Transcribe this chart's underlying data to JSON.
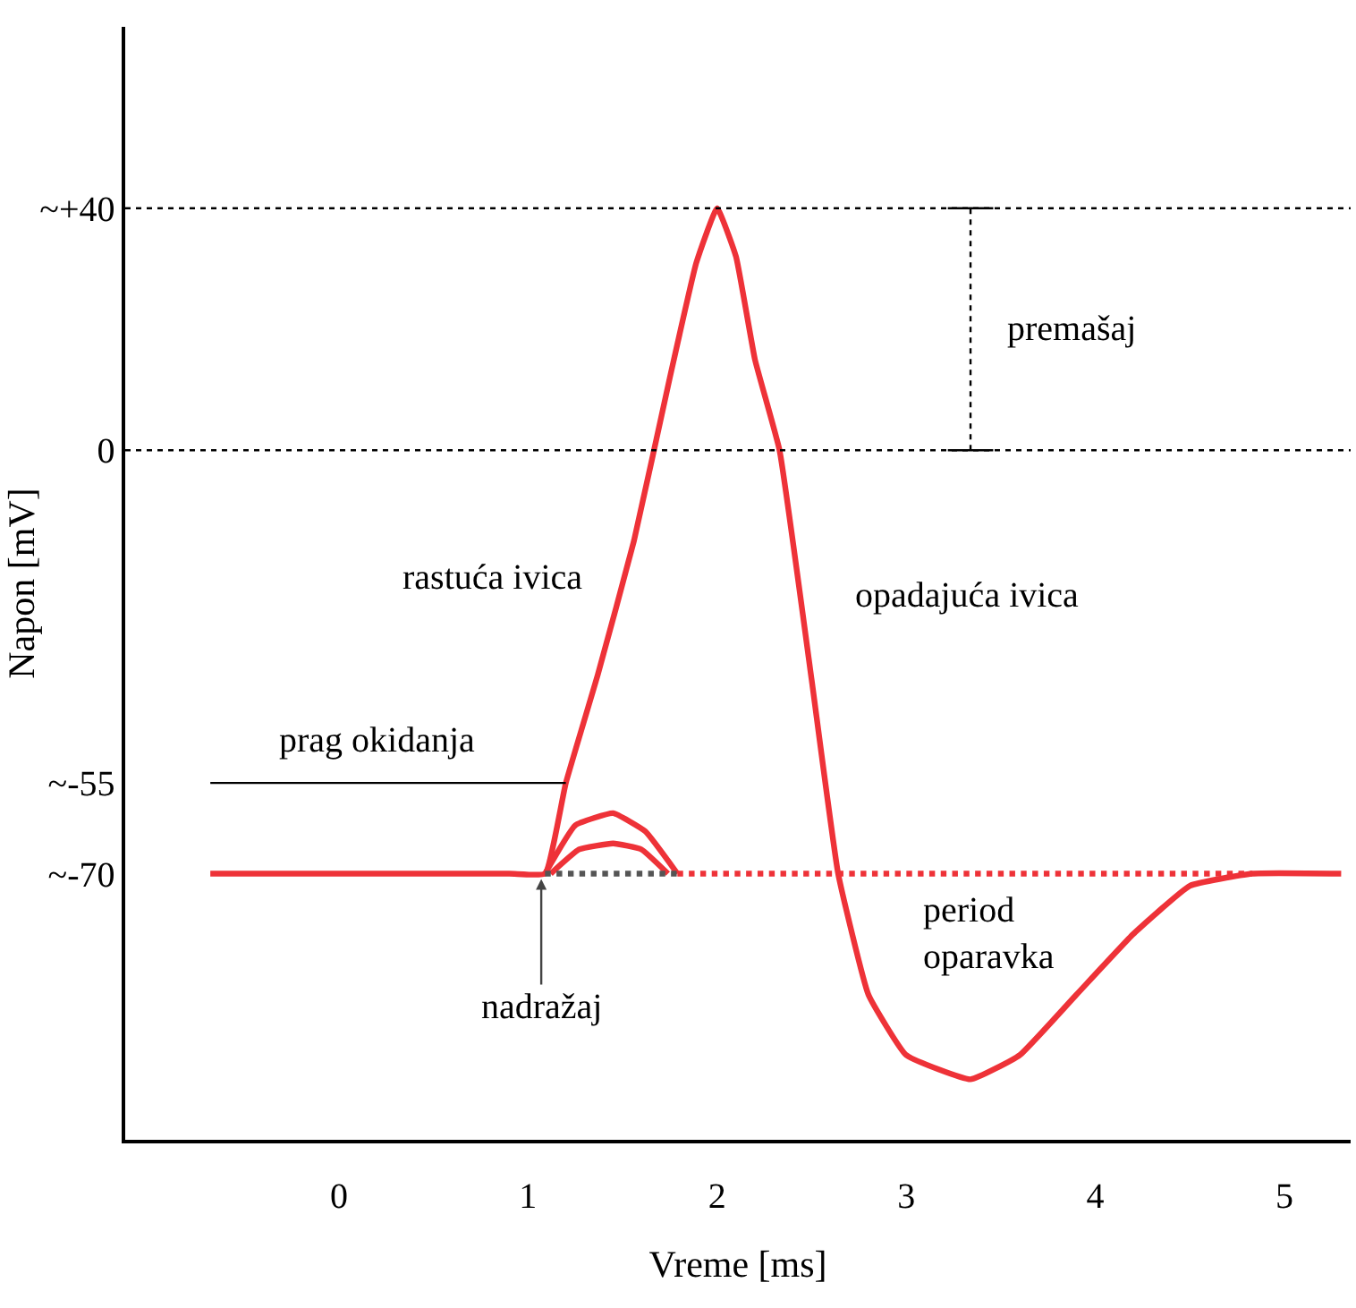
{
  "chart_data": {
    "type": "line",
    "xlabel": "Vreme [ms]",
    "ylabel": "Napon [mV]",
    "xlim": [
      -1.13,
      5.35
    ],
    "xticks": [
      0,
      1,
      2,
      3,
      4,
      5
    ],
    "ylim": [
      -114,
      70
    ],
    "yticks": [
      {
        "value": 40,
        "label": "~+40"
      },
      0,
      {
        "value": -55,
        "label": "~-55"
      },
      {
        "value": -70,
        "label": "~-70"
      }
    ],
    "grid": false,
    "marker": "none",
    "series": [
      {
        "color": "#ee3238",
        "line_style": "solid",
        "x": [
          -0.68,
          0.9,
          1.09,
          1.2,
          1.37,
          1.56,
          1.75,
          1.89,
          2.0,
          2.1,
          2.2,
          2.33,
          2.5,
          2.64,
          2.8,
          3.0,
          3.34,
          3.6,
          3.9,
          4.2,
          4.5,
          4.83,
          5.3
        ],
        "values": [
          -70,
          -70,
          -70,
          -55,
          -37,
          -15,
          12,
          31,
          40,
          32,
          15,
          0,
          -38,
          -70,
          -90,
          -100,
          -104,
          -100,
          -90,
          -80,
          -72,
          -70,
          -70
        ]
      },
      {
        "color": "#ee3238",
        "line_style": "solid",
        "x": [
          1.09,
          1.25,
          1.45,
          1.62,
          1.79
        ],
        "values": [
          -70,
          -62,
          -60,
          -63,
          -70
        ]
      },
      {
        "color": "#ee3238",
        "line_style": "solid",
        "x": [
          1.12,
          1.27,
          1.45,
          1.6,
          1.74
        ],
        "values": [
          -70,
          -66,
          -65,
          -66,
          -70
        ]
      },
      {
        "color": "#ee3238",
        "line_style": "dotted",
        "x": [
          1.79,
          4.83
        ],
        "values": [
          -70,
          -70
        ]
      },
      {
        "color": "#555555",
        "line_style": "dotted",
        "x": [
          1.09,
          1.79
        ],
        "values": [
          -70,
          -70
        ]
      },
      {
        "color": "#000000",
        "line_style": "solid",
        "x": [
          -0.68,
          1.2
        ],
        "values": [
          -55,
          -55
        ]
      },
      {
        "color": "#000000",
        "line_style": "dotted",
        "x": [
          3.34,
          3.34
        ],
        "values": [
          0,
          40
        ]
      },
      {
        "color": "#000000",
        "line_style": "solid",
        "x": [
          3.22,
          3.46
        ],
        "values": [
          40,
          40
        ]
      },
      {
        "color": "#000000",
        "line_style": "solid",
        "x": [
          3.22,
          3.46
        ],
        "values": [
          0,
          0
        ]
      }
    ],
    "ref_lines": [
      {
        "axis": "y",
        "value": 40,
        "color": "#000000",
        "line_style": "dotted"
      },
      {
        "axis": "y",
        "value": 0,
        "color": "#000000",
        "line_style": "dotted"
      }
    ],
    "annotations": [
      "premašaj",
      "rastuća ivica",
      "opadajuća ivica",
      "prag okidanja",
      {
        "text": "nadražaj",
        "x": 1.07,
        "y": -70
      },
      "period\noparavka"
    ]
  }
}
